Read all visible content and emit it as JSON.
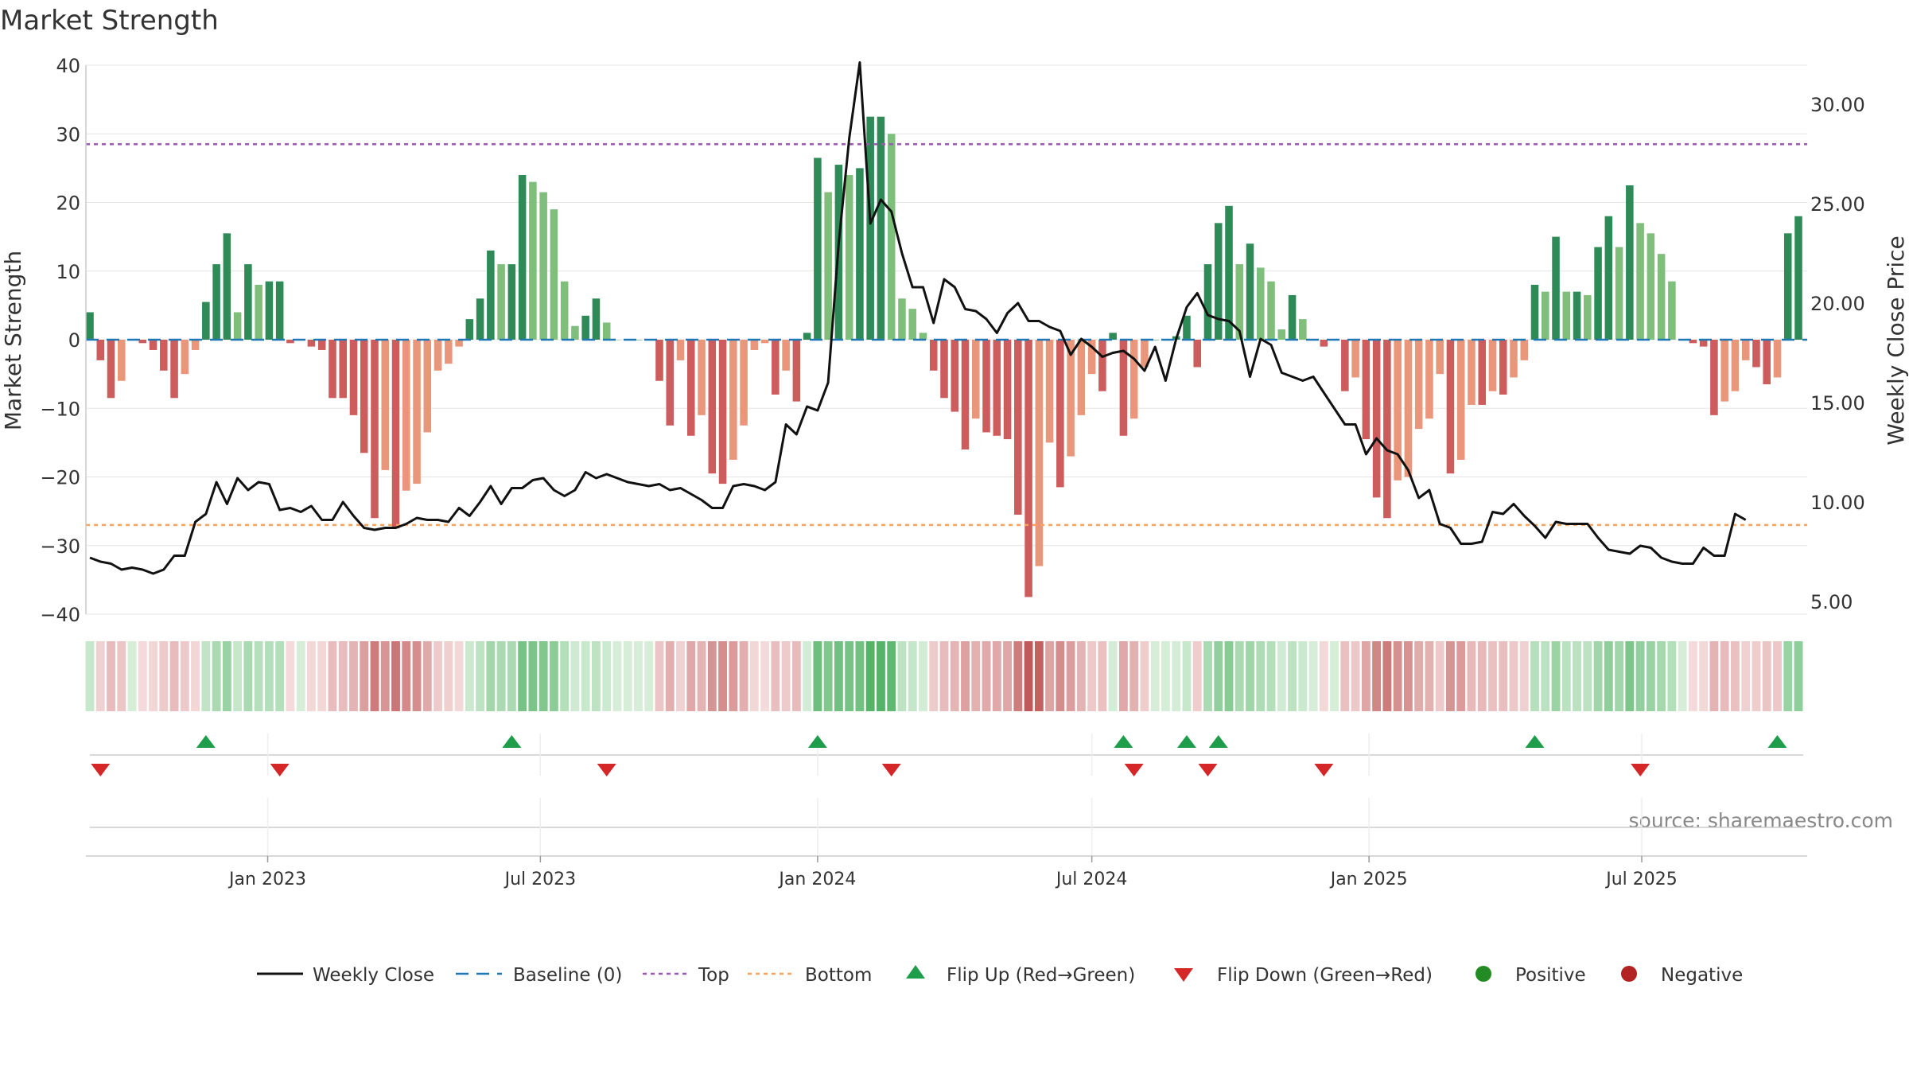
{
  "chart_data": {
    "type": "bar",
    "title": "Market Strength",
    "ylabel": "Market Strength",
    "y2label": "Weekly Close Price",
    "ylim": [
      -40,
      40
    ],
    "y2lim": [
      5,
      32
    ],
    "yticks": [
      "40",
      "30",
      "20",
      "10",
      "0",
      "−10",
      "−20",
      "−30",
      "−40"
    ],
    "y2ticks": [
      "30.00",
      "25.00",
      "20.00",
      "15.00",
      "10.00",
      "5.00"
    ],
    "xticks": [
      "Jan 2023",
      "Jul 2023",
      "Jan 2024",
      "Jul 2024",
      "Jan 2025",
      "Jul 2025"
    ],
    "x_start": "2022-09-05",
    "x_week_step": 1,
    "top_line": 28.5,
    "bottom_line": -27,
    "strength_values": [
      4,
      -3,
      -8.5,
      -6,
      0,
      -0.5,
      -1.5,
      -4.5,
      -8.5,
      -5,
      -1.5,
      5.5,
      11,
      15.5,
      4,
      11,
      8,
      8.5,
      8.5,
      -0.5,
      0,
      -1,
      -1.5,
      -8.5,
      -8.5,
      -11,
      -16.5,
      -26,
      -19,
      -27.5,
      -22,
      -21,
      -13.5,
      -4.5,
      -3.5,
      -1,
      3,
      6,
      13,
      11,
      11,
      24,
      23,
      21.5,
      19,
      8.5,
      2,
      3.5,
      6,
      2.5,
      0,
      0,
      0,
      0,
      -6,
      -12.5,
      -3,
      -14,
      -11,
      -19.5,
      -21,
      -17.5,
      -12.5,
      -1.5,
      -0.5,
      -8,
      -4.5,
      -9,
      1,
      26.5,
      21.5,
      25.5,
      24,
      25,
      32.5,
      32.5,
      30,
      6,
      4.5,
      1,
      -4.5,
      -8.5,
      -10.5,
      -16,
      -11.5,
      -13.5,
      -14,
      -14.5,
      -25.5,
      -37.5,
      -33,
      -15,
      -21.5,
      -17,
      -11,
      -5,
      -7.5,
      1,
      -14,
      -11.5,
      -4,
      0,
      0,
      0.5,
      3.5,
      -4,
      11,
      17,
      19.5,
      11,
      14,
      10.5,
      8.5,
      1.5,
      6.5,
      3,
      0,
      -1,
      0,
      -7.5,
      -5.5,
      -14.5,
      -23,
      -26,
      -20.5,
      -20,
      -13,
      -11.5,
      -5,
      -19.5,
      -17.5,
      -9.5,
      -9.5,
      -7.5,
      -8,
      -5.5,
      -3,
      8,
      7,
      15,
      7,
      7,
      6.5,
      13.5,
      18,
      13.5,
      22.5,
      17,
      15.5,
      12.5,
      8.5,
      0,
      -0.5,
      -1,
      -11,
      -9,
      -7.5,
      -3,
      -4,
      -6.5,
      -5.5,
      15.5,
      18
    ],
    "close_values": [
      7.2,
      7.0,
      6.9,
      6.6,
      6.7,
      6.6,
      6.4,
      6.6,
      7.3,
      7.3,
      9.0,
      9.4,
      11.0,
      9.9,
      11.2,
      10.6,
      11.0,
      10.9,
      9.6,
      9.7,
      9.5,
      9.8,
      9.1,
      9.1,
      10.0,
      9.3,
      8.7,
      8.6,
      8.7,
      8.7,
      8.9,
      9.2,
      9.1,
      9.1,
      9.0,
      9.7,
      9.3,
      10.0,
      10.8,
      9.9,
      10.7,
      10.7,
      11.1,
      11.2,
      10.6,
      10.3,
      10.6,
      11.5,
      11.2,
      11.4,
      11.2,
      11.0,
      10.9,
      10.8,
      10.9,
      10.6,
      10.7,
      10.4,
      10.1,
      9.7,
      9.7,
      10.8,
      10.9,
      10.8,
      10.6,
      11.0,
      13.9,
      13.4,
      14.8,
      14.6,
      16.0,
      23.0,
      28.3,
      32.1,
      24.0,
      25.2,
      24.6,
      22.5,
      20.8,
      20.8,
      19.0,
      21.2,
      20.8,
      19.7,
      19.6,
      19.2,
      18.5,
      19.5,
      20.0,
      19.1,
      19.1,
      18.8,
      18.6,
      17.4,
      18.2,
      17.8,
      17.3,
      17.5,
      17.6,
      17.2,
      16.6,
      17.8,
      16.1,
      18.2,
      19.8,
      20.5,
      19.4,
      19.2,
      19.1,
      18.6,
      16.3,
      18.2,
      17.9,
      16.5,
      16.3,
      16.1,
      16.3,
      15.5,
      14.7,
      13.9,
      13.9,
      12.4,
      13.2,
      12.6,
      12.4,
      11.6,
      10.2,
      10.6,
      8.9,
      8.7,
      7.9,
      7.9,
      8.0,
      9.5,
      9.4,
      9.9,
      9.3,
      8.8,
      8.2,
      9.0,
      8.9,
      8.9,
      8.9,
      8.2,
      7.6,
      7.5,
      7.4,
      7.8,
      7.7,
      7.2,
      7.0,
      6.9,
      6.9,
      7.7,
      7.3,
      7.3,
      9.4,
      9.1
    ],
    "flip_up_weeks": [
      11,
      40,
      69,
      98,
      104,
      107,
      137,
      160
    ],
    "flip_down_weeks": [
      1,
      18,
      49,
      76,
      99,
      106,
      117,
      147
    ],
    "colors": {
      "green_dark": "#2e8b57",
      "green_light": "#7fbf7b",
      "red_dark": "#cd5c5c",
      "red_light": "#e9967a",
      "baseline": "#1f77b4",
      "top_line": "#9b59b6",
      "bottom_line": "#f4a460",
      "close_line": "#111111",
      "flip_up": "#1e9e4a",
      "flip_down": "#d62728",
      "positive": "#228b22",
      "negative": "#b22222"
    },
    "legend": [
      {
        "key": "weekly_close",
        "label": "Weekly Close"
      },
      {
        "key": "baseline",
        "label": "Baseline (0)"
      },
      {
        "key": "top",
        "label": "Top"
      },
      {
        "key": "bottom",
        "label": "Bottom"
      },
      {
        "key": "flip_up",
        "label": "Flip Up (Red→Green)"
      },
      {
        "key": "flip_down",
        "label": "Flip Down (Green→Red)"
      },
      {
        "key": "positive",
        "label": "Positive"
      },
      {
        "key": "negative",
        "label": "Negative"
      }
    ],
    "legend_position": "bottom-center",
    "grid": true,
    "source": "source: sharemaestro.com"
  }
}
